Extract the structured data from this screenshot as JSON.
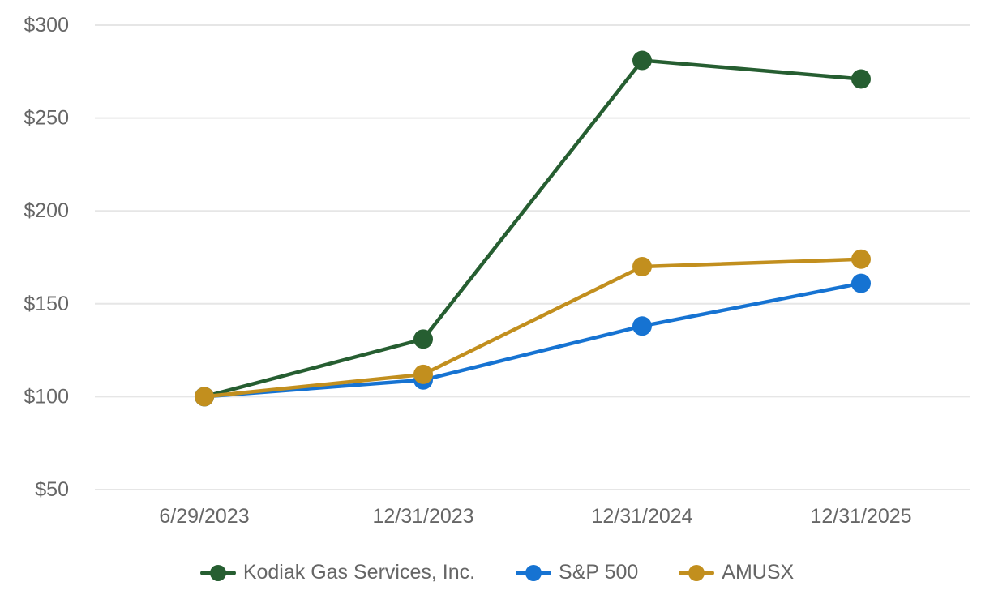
{
  "chart_data": {
    "type": "line",
    "title": "",
    "x_categories": [
      "6/29/2023",
      "12/31/2023",
      "12/31/2024",
      "12/31/2025"
    ],
    "series": [
      {
        "name": "Kodiak Gas Services, Inc.",
        "color": "#265e31",
        "values": [
          100,
          131,
          281,
          271
        ]
      },
      {
        "name": "S&P 500",
        "color": "#1673d2",
        "values": [
          100,
          109,
          138,
          161
        ]
      },
      {
        "name": "AMUSX",
        "color": "#c28f1e",
        "values": [
          100,
          112,
          170,
          174
        ]
      }
    ],
    "y_axis": {
      "min": 50,
      "max": 300,
      "tick_step": 50,
      "tick_labels": [
        "$50",
        "$100",
        "$150",
        "$200",
        "$250",
        "$300"
      ],
      "prefix": "$"
    },
    "x_axis": {
      "tick_labels": [
        "6/29/2023",
        "12/31/2023",
        "12/31/2024",
        "12/31/2025"
      ]
    },
    "grid": {
      "horizontal": true,
      "vertical": false,
      "color": "#e6e6e6"
    },
    "legend": {
      "position": "bottom-center"
    },
    "styles": {
      "background": "#ffffff",
      "axis_label_color": "#666666",
      "line_width": 4.5,
      "marker_radius": 12
    }
  }
}
